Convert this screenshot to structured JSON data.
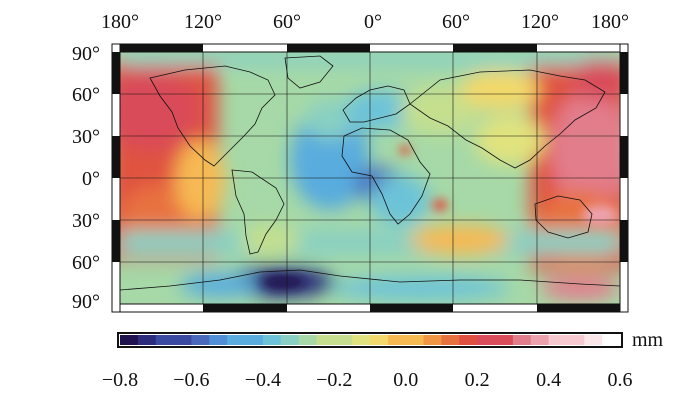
{
  "map": {
    "top_longitude_labels": [
      "180°",
      "120°",
      "60°",
      "0°",
      "60°",
      "120°",
      "180°"
    ],
    "left_latitude_labels": [
      "90°",
      "60°",
      "30°",
      "0°",
      "30°",
      "60°",
      "90°"
    ]
  },
  "colorbar": {
    "unit_label": "mm",
    "tick_labels": [
      "−0.8",
      "−0.6",
      "−0.4",
      "−0.2",
      "0.0",
      "0.2",
      "0.4",
      "0.6"
    ],
    "range": [
      -0.8,
      0.6
    ],
    "step": 0.05,
    "colors": [
      "#20124d",
      "#2b2d7c",
      "#3a4aa0",
      "#4a69bd",
      "#4f8fd6",
      "#58acde",
      "#6cc3d9",
      "#88d0c3",
      "#a6d9a7",
      "#c5df8e",
      "#e1e37e",
      "#f3d86b",
      "#f7b952",
      "#f19645",
      "#e8723f",
      "#e0523f",
      "#d94c59",
      "#e27d8b",
      "#eca2ad",
      "#f5c9cf",
      "#fbe7ea",
      "#ffffff"
    ]
  }
}
